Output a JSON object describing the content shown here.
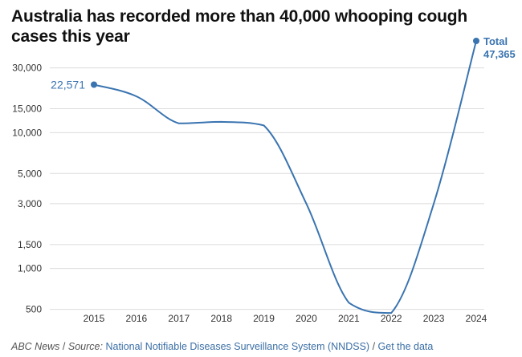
{
  "title": "Australia has recorded more than 40,000 whooping cough cases this year",
  "chart_data": {
    "type": "line",
    "title": "Australia has recorded more than 40,000 whooping cough cases this year",
    "x": [
      "2015",
      "2016",
      "2017",
      "2018",
      "2019",
      "2020",
      "2021",
      "2022",
      "2023",
      "2024"
    ],
    "series": [
      {
        "values": [
          22571,
          18500,
          11700,
          12000,
          11300,
          3000,
          560,
          470,
          3000,
          47365
        ]
      }
    ],
    "yscale": "log",
    "yticks": [
      500,
      1000,
      1500,
      3000,
      5000,
      10000,
      15000,
      30000
    ],
    "ytick_labels": [
      "500",
      "1,000",
      "1,500",
      "3,000",
      "5,000",
      "10,000",
      "15,000",
      "30,000"
    ],
    "ylim": [
      440,
      55000
    ],
    "grid": true,
    "line_color": "#3a74b0",
    "annotations": {
      "start_value": "22,571",
      "end_label": "Total",
      "end_value": "47,365"
    }
  },
  "footer": {
    "publisher": "ABC News",
    "separator": "/",
    "source_prefix": "Source:",
    "source_name": "National Notifiable Diseases Surveillance System (NNDSS)",
    "get_data": "Get the data"
  }
}
